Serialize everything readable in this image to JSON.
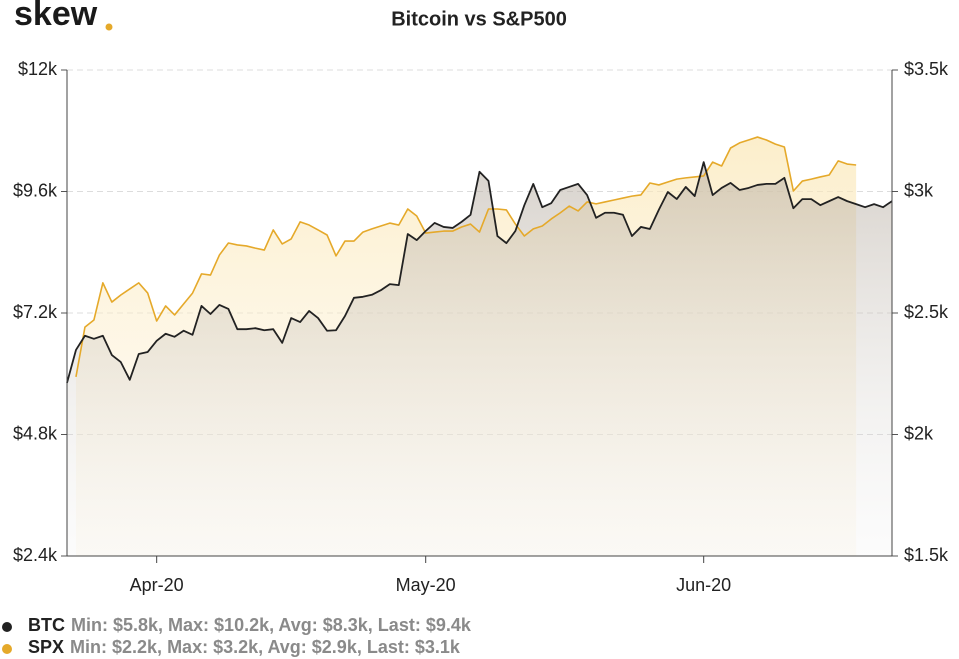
{
  "logo": "skew",
  "chart_data": {
    "type": "line",
    "title": "Bitcoin vs S&P500",
    "categories": [
      null,
      null,
      null,
      null,
      null,
      null,
      null,
      null,
      null,
      null,
      "Apr-20",
      null,
      null,
      null,
      null,
      null,
      null,
      null,
      null,
      null,
      null,
      null,
      null,
      null,
      null,
      null,
      null,
      null,
      null,
      null,
      null,
      null,
      null,
      null,
      null,
      null,
      null,
      null,
      null,
      null,
      "May-20",
      null,
      null,
      null,
      null,
      null,
      null,
      null,
      null,
      null,
      null,
      null,
      null,
      null,
      null,
      null,
      null,
      null,
      null,
      null,
      null,
      null,
      null,
      null,
      null,
      null,
      null,
      null,
      null,
      null,
      null,
      "Jun-20",
      null,
      null,
      null,
      null,
      null,
      null,
      null,
      null,
      null,
      null,
      null,
      null,
      null,
      null,
      null,
      null,
      null,
      null,
      null,
      null,
      null
    ],
    "series": [
      {
        "name": "BTC",
        "color": "#222222",
        "axis": "y",
        "stats": "Min: $5.8k, Max: $10.2k, Avg: $8.3k, Last: $9.4k",
        "values": [
          5820,
          6470,
          6750,
          6690,
          6750,
          6370,
          6230,
          5880,
          6390,
          6430,
          6650,
          6790,
          6730,
          6850,
          6770,
          7340,
          7180,
          7360,
          7280,
          6880,
          6880,
          6900,
          6860,
          6880,
          6610,
          7100,
          7020,
          7240,
          7100,
          6850,
          6860,
          7140,
          7500,
          7520,
          7560,
          7650,
          7770,
          7750,
          8760,
          8640,
          8820,
          8980,
          8900,
          8880,
          9000,
          9140,
          9990,
          9810,
          8720,
          8580,
          8820,
          9330,
          9750,
          9290,
          9370,
          9630,
          9690,
          9750,
          9530,
          9080,
          9180,
          9180,
          9140,
          8720,
          8900,
          8860,
          9240,
          9590,
          9450,
          9690,
          9510,
          10180,
          9530,
          9670,
          9770,
          9630,
          9670,
          9730,
          9750,
          9750,
          9870,
          9270,
          9450,
          9450,
          9330,
          9410,
          9490,
          9410,
          9350,
          9290,
          9350,
          9290,
          9410
        ]
      },
      {
        "name": "SPX",
        "color": "#e5a92a",
        "axis": "y2",
        "stats": "Min: $2.2k, Max: $3.2k, Avg: $2.9k, Last: $3.1k",
        "values": [
          null,
          2237,
          2442,
          2471,
          2624,
          2545,
          2574,
          2599,
          2624,
          2582,
          2467,
          2529,
          2492,
          2537,
          2582,
          2661,
          2656,
          2739,
          2788,
          2780,
          2776,
          2767,
          2759,
          2842,
          2784,
          2805,
          2875,
          2862,
          2842,
          2821,
          2735,
          2796,
          2796,
          2833,
          2846,
          2858,
          2870,
          2862,
          2928,
          2899,
          2829,
          2833,
          2837,
          2837,
          2854,
          2866,
          2833,
          2928,
          2928,
          2924,
          2866,
          2817,
          2846,
          2858,
          2887,
          2912,
          2940,
          2920,
          2957,
          2949,
          2957,
          2965,
          2973,
          2981,
          2986,
          3035,
          3027,
          3039,
          3051,
          3056,
          3060,
          3064,
          3121,
          3105,
          3179,
          3200,
          3212,
          3224,
          3212,
          3195,
          3183,
          3002,
          3043,
          3051,
          3060,
          3068,
          3126,
          3113,
          3109,
          null,
          null,
          null,
          null
        ]
      }
    ],
    "ylim": [
      2400,
      12000
    ],
    "yticks": [
      {
        "value": 2400,
        "label": "$2.4k"
      },
      {
        "value": 4800,
        "label": "$4.8k"
      },
      {
        "value": 7200,
        "label": "$7.2k"
      },
      {
        "value": 9600,
        "label": "$9.6k"
      },
      {
        "value": 12000,
        "label": "$12k"
      }
    ],
    "y2lim": [
      1500,
      3500
    ],
    "y2ticks": [
      {
        "value": 1500,
        "label": "$1.5k"
      },
      {
        "value": 2000,
        "label": "$2k"
      },
      {
        "value": 2500,
        "label": "$2.5k"
      },
      {
        "value": 3000,
        "label": "$3k"
      },
      {
        "value": 3500,
        "label": "$3.5k"
      }
    ],
    "grid": true
  }
}
